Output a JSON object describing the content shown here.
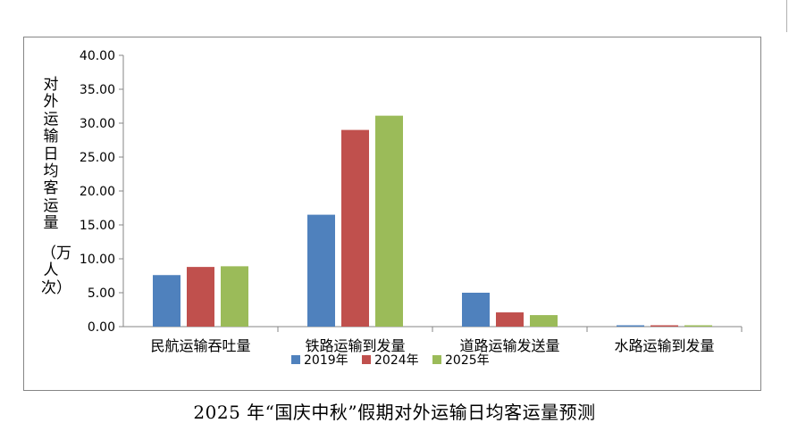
{
  "chart_data": {
    "type": "bar",
    "categories": [
      "民航运输吞吐量",
      "铁路运输到发量",
      "道路运输发送量",
      "水路运输到发量"
    ],
    "series": [
      {
        "name": "2019年",
        "color": "#4F81BD",
        "values": [
          7.6,
          16.5,
          5.0,
          0.2
        ]
      },
      {
        "name": "2024年",
        "color": "#C0504D",
        "values": [
          8.8,
          29.0,
          2.1,
          0.2
        ]
      },
      {
        "name": "2025年",
        "color": "#9BBB59",
        "values": [
          8.9,
          31.1,
          1.7,
          0.2
        ]
      }
    ],
    "ylabel": "对外运输日均客运量",
    "ylabel_unit": "（万人次）",
    "ylim": [
      0,
      40
    ],
    "yticks": [
      "0.00",
      "5.00",
      "10.00",
      "15.00",
      "20.00",
      "25.00",
      "30.00",
      "35.00",
      "40.00"
    ],
    "grid": false,
    "legend_position": "bottom"
  },
  "caption": "2025 年“国庆中秋”假期对外运输日均客运量预测"
}
